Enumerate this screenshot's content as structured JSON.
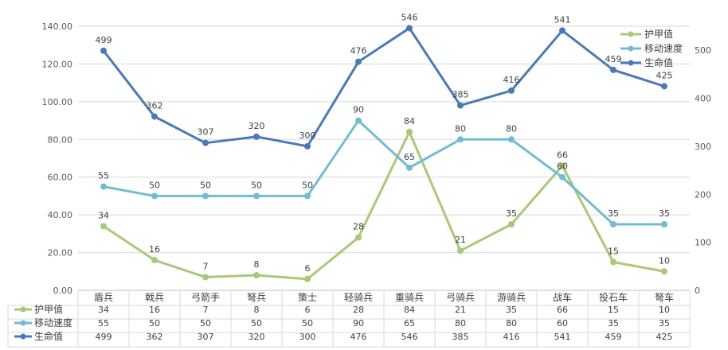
{
  "chart_data": {
    "type": "line",
    "title": "",
    "categories": [
      "盾兵",
      "戟兵",
      "弓箭手",
      "弩兵",
      "策士",
      "轻骑兵",
      "重骑兵",
      "弓骑兵",
      "游骑兵",
      "战车",
      "投石车",
      "弩车"
    ],
    "series": [
      {
        "name": "护甲值",
        "axis": "left",
        "color": "#a9c87a",
        "values": [
          34,
          16,
          7,
          8,
          6,
          28,
          84,
          21,
          35,
          66,
          15,
          10
        ]
      },
      {
        "name": "移动速度",
        "axis": "left",
        "color": "#72bcd3",
        "values": [
          55,
          50,
          50,
          50,
          50,
          90,
          65,
          80,
          80,
          60,
          35,
          35
        ]
      },
      {
        "name": "生命值",
        "axis": "right",
        "color": "#4a7ab5",
        "values": [
          499,
          362,
          307,
          320,
          300,
          476,
          546,
          385,
          416,
          541,
          459,
          425
        ]
      }
    ],
    "y_left": {
      "ylim": [
        0,
        140
      ],
      "ticks": [
        "0.00",
        "20.00",
        "40.00",
        "60.00",
        "80.00",
        "100.00",
        "120.00",
        "140.00"
      ]
    },
    "y_right": {
      "ylim": [
        0,
        550
      ],
      "ticks": [
        "0",
        "100",
        "200",
        "300",
        "400",
        "500"
      ]
    },
    "grid": true,
    "legend": "top-right",
    "data_table": true
  }
}
